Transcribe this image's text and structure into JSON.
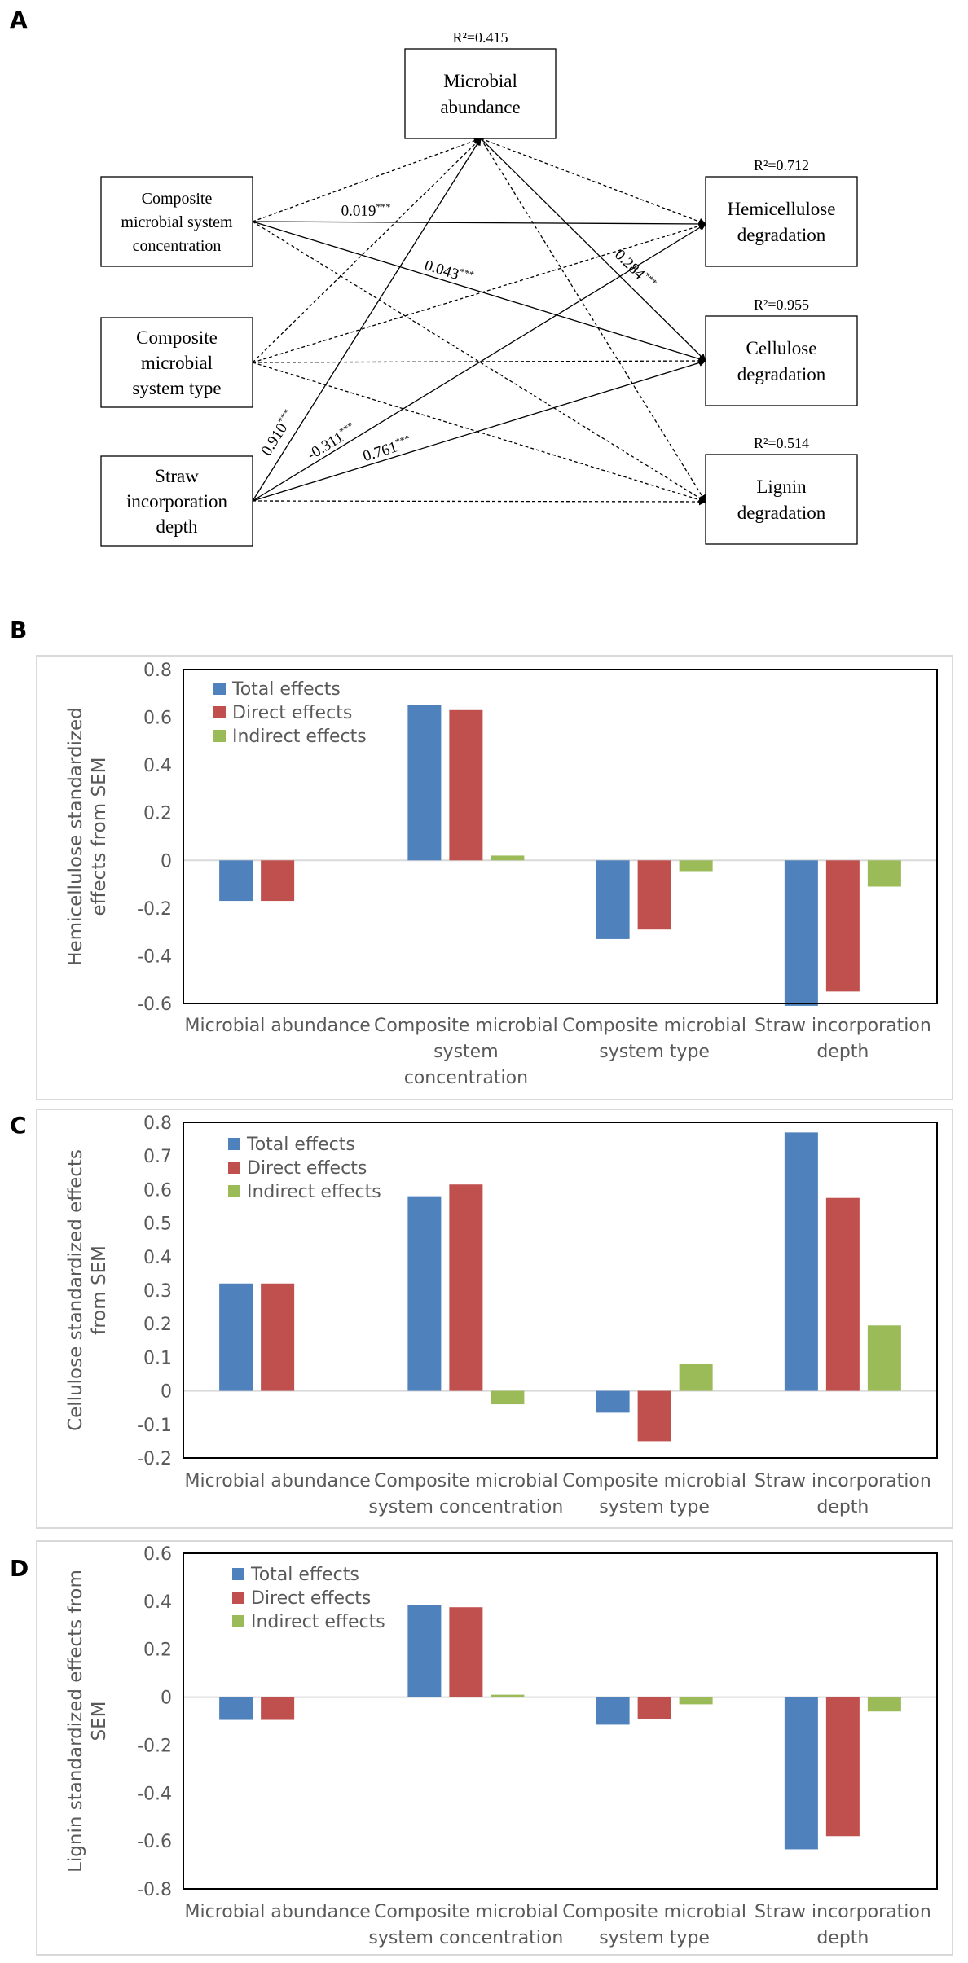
{
  "colors": {
    "total": "#4f81bd",
    "direct": "#c0504d",
    "indirect": "#9bbb59",
    "axis_text": "#595959",
    "frame": "#000000",
    "panel_border": "#d9d9d9"
  },
  "panel_labels": {
    "a": "A",
    "b": "B",
    "c": "C",
    "d": "D"
  },
  "sem": {
    "nodes": {
      "microbial_abundance": {
        "label": [
          "Microbial",
          "abundance"
        ],
        "r2": "R²=0.415"
      },
      "composite_concentration": {
        "label": [
          "Composite",
          "microbial system",
          "concentration"
        ]
      },
      "composite_type": {
        "label": [
          "Composite",
          "microbial",
          "system type"
        ]
      },
      "straw_depth": {
        "label": [
          "Straw",
          "incorporation",
          "depth"
        ]
      },
      "hemicellulose": {
        "label": [
          "Hemicellulose",
          "degradation"
        ],
        "r2": "R²=0.712"
      },
      "cellulose": {
        "label": [
          "Cellulose",
          "degradation"
        ],
        "r2": "R²=0.955"
      },
      "lignin": {
        "label": [
          "Lignin",
          "degradation"
        ],
        "r2": "R²=0.514"
      }
    },
    "paths": [
      {
        "from": "composite_concentration",
        "to": "microbial_abundance",
        "style": "dashed"
      },
      {
        "from": "composite_type",
        "to": "microbial_abundance",
        "style": "dashed"
      },
      {
        "from": "straw_depth",
        "to": "microbial_abundance",
        "style": "solid",
        "coef": "0.910",
        "sig": "***"
      },
      {
        "from": "microbial_abundance",
        "to": "hemicellulose",
        "style": "dashed"
      },
      {
        "from": "microbial_abundance",
        "to": "cellulose",
        "style": "solid",
        "coef": "0.284",
        "sig": "***"
      },
      {
        "from": "microbial_abundance",
        "to": "lignin",
        "style": "dashed"
      },
      {
        "from": "composite_concentration",
        "to": "hemicellulose",
        "style": "solid",
        "coef": "0.019",
        "sig": "***"
      },
      {
        "from": "composite_concentration",
        "to": "cellulose",
        "style": "solid",
        "coef": "0.043",
        "sig": "***"
      },
      {
        "from": "composite_concentration",
        "to": "lignin",
        "style": "dashed"
      },
      {
        "from": "composite_type",
        "to": "hemicellulose",
        "style": "dashed"
      },
      {
        "from": "composite_type",
        "to": "cellulose",
        "style": "dashed"
      },
      {
        "from": "composite_type",
        "to": "lignin",
        "style": "dashed"
      },
      {
        "from": "straw_depth",
        "to": "hemicellulose",
        "style": "solid",
        "coef": "-0.311",
        "sig": "***"
      },
      {
        "from": "straw_depth",
        "to": "cellulose",
        "style": "solid",
        "coef": "0.761",
        "sig": "***"
      },
      {
        "from": "straw_depth",
        "to": "lignin",
        "style": "dashed"
      }
    ]
  },
  "chart_data": [
    {
      "type": "bar",
      "panel": "B",
      "ylabel": [
        "Hemicellulose standardized",
        "effects from SEM"
      ],
      "ylim": [
        -0.6,
        0.8
      ],
      "yticks": [
        -0.6,
        -0.4,
        -0.2,
        0,
        0.2,
        0.4,
        0.6,
        0.8
      ],
      "ytick_labels": [
        "-0.6",
        "-0.4",
        "-0.2",
        "0",
        "0.2",
        "0.4",
        "0.6",
        "0.8"
      ],
      "categories": [
        [
          "Microbial abundance"
        ],
        [
          "Composite microbial",
          "system",
          "concentration"
        ],
        [
          "Composite microbial",
          "system type"
        ],
        [
          "Straw incorporation",
          "depth"
        ]
      ],
      "series": [
        {
          "name": "Total effects",
          "values": [
            -0.17,
            0.65,
            -0.33,
            -0.61
          ]
        },
        {
          "name": "Direct effects",
          "values": [
            -0.17,
            0.63,
            -0.29,
            -0.55
          ]
        },
        {
          "name": "Indirect effects",
          "values": [
            0,
            0.02,
            -0.045,
            -0.11
          ]
        }
      ]
    },
    {
      "type": "bar",
      "panel": "C",
      "ylabel": [
        "Cellulose standardized effects",
        "from SEM"
      ],
      "ylim": [
        -0.2,
        0.8
      ],
      "yticks": [
        -0.2,
        -0.1,
        0,
        0.1,
        0.2,
        0.3,
        0.4,
        0.5,
        0.6,
        0.7,
        0.8
      ],
      "ytick_labels": [
        "-0.2",
        "-0.1",
        "0",
        "0.1",
        "0.2",
        "0.3",
        "0.4",
        "0.5",
        "0.6",
        "0.7",
        "0.8"
      ],
      "categories": [
        [
          "Microbial abundance"
        ],
        [
          "Composite microbial",
          "system concentration"
        ],
        [
          "Composite microbial",
          "system type"
        ],
        [
          "Straw incorporation",
          "depth"
        ]
      ],
      "series": [
        {
          "name": "Total effects",
          "values": [
            0.32,
            0.58,
            -0.065,
            0.77
          ]
        },
        {
          "name": "Direct effects",
          "values": [
            0.32,
            0.615,
            -0.15,
            0.575
          ]
        },
        {
          "name": "Indirect effects",
          "values": [
            0,
            -0.04,
            0.08,
            0.195
          ]
        }
      ]
    },
    {
      "type": "bar",
      "panel": "D",
      "ylabel": [
        "Lignin standardized effects from",
        "SEM"
      ],
      "ylim": [
        -0.8,
        0.6
      ],
      "yticks": [
        -0.8,
        -0.6,
        -0.4,
        -0.2,
        0,
        0.2,
        0.4,
        0.6
      ],
      "ytick_labels": [
        "-0.8",
        "-0.6",
        "-0.4",
        "-0.2",
        "0",
        "0.2",
        "0.4",
        "0.6"
      ],
      "categories": [
        [
          "Microbial abundance"
        ],
        [
          "Composite microbial",
          "system concentration"
        ],
        [
          "Composite microbial",
          "system type"
        ],
        [
          "Straw incorporation",
          "depth"
        ]
      ],
      "series": [
        {
          "name": "Total effects",
          "values": [
            -0.095,
            0.385,
            -0.115,
            -0.635
          ]
        },
        {
          "name": "Direct effects",
          "values": [
            -0.095,
            0.375,
            -0.09,
            -0.58
          ]
        },
        {
          "name": "Indirect effects",
          "values": [
            0,
            0.01,
            -0.03,
            -0.06
          ]
        }
      ]
    }
  ]
}
